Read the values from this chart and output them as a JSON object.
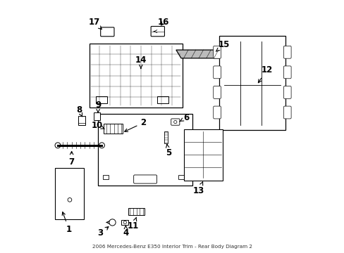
{
  "title": "2006 Mercedes-Benz E350 Interior Trim - Rear Body Diagram 2",
  "bg_color": "#ffffff",
  "line_color": "#000000",
  "label_fontsize": 8.5,
  "label_data": [
    [
      1,
      0.09,
      0.09,
      0.06,
      0.17
    ],
    [
      2,
      0.385,
      0.515,
      0.3,
      0.475
    ],
    [
      3,
      0.215,
      0.075,
      0.255,
      0.108
    ],
    [
      4,
      0.315,
      0.075,
      0.315,
      0.108
    ],
    [
      5,
      0.485,
      0.395,
      0.478,
      0.432
    ],
    [
      6,
      0.555,
      0.535,
      0.522,
      0.516
    ],
    [
      7,
      0.1,
      0.36,
      0.1,
      0.412
    ],
    [
      8,
      0.13,
      0.565,
      0.143,
      0.538
    ],
    [
      9,
      0.205,
      0.585,
      0.205,
      0.553
    ],
    [
      10,
      0.2,
      0.505,
      0.232,
      0.49
    ],
    [
      11,
      0.345,
      0.105,
      0.36,
      0.147
    ],
    [
      12,
      0.875,
      0.725,
      0.835,
      0.665
    ],
    [
      13,
      0.605,
      0.245,
      0.622,
      0.282
    ],
    [
      14,
      0.375,
      0.765,
      0.375,
      0.722
    ],
    [
      15,
      0.705,
      0.825,
      0.672,
      0.798
    ],
    [
      16,
      0.465,
      0.915,
      0.448,
      0.895
    ],
    [
      17,
      0.19,
      0.915,
      0.222,
      0.885
    ]
  ]
}
